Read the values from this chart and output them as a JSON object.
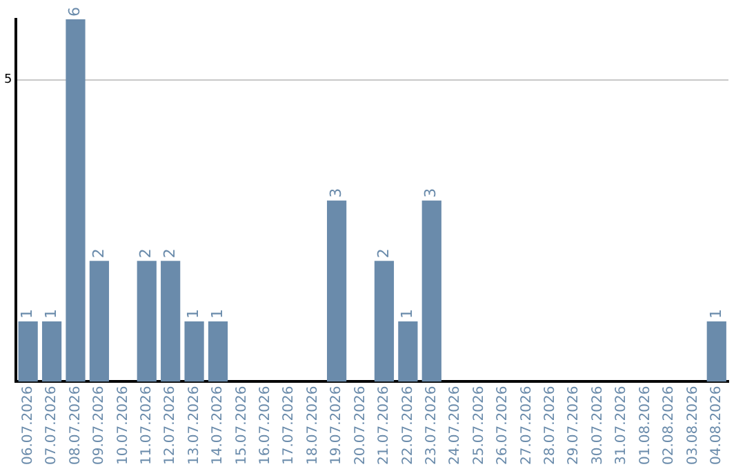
{
  "chart_data": {
    "type": "bar",
    "categories": [
      "06.07.2026",
      "07.07.2026",
      "08.07.2026",
      "09.07.2026",
      "10.07.2026",
      "11.07.2026",
      "12.07.2026",
      "13.07.2026",
      "14.07.2026",
      "15.07.2026",
      "16.07.2026",
      "17.07.2026",
      "18.07.2026",
      "19.07.2026",
      "20.07.2026",
      "21.07.2026",
      "22.07.2026",
      "23.07.2026",
      "24.07.2026",
      "25.07.2026",
      "26.07.2026",
      "27.07.2026",
      "28.07.2026",
      "29.07.2026",
      "30.07.2026",
      "31.07.2026",
      "01.08.2026",
      "02.08.2026",
      "03.08.2026",
      "04.08.2026"
    ],
    "values": [
      1,
      1,
      6,
      2,
      0,
      2,
      2,
      1,
      1,
      0,
      0,
      0,
      0,
      3,
      0,
      2,
      1,
      3,
      0,
      0,
      0,
      0,
      0,
      0,
      0,
      0,
      0,
      0,
      0,
      1
    ],
    "value_labels": [
      "1",
      "1",
      "6",
      "2",
      null,
      "2",
      "2",
      "1",
      "1",
      null,
      null,
      null,
      null,
      "3",
      null,
      "2",
      "1",
      "3",
      null,
      null,
      null,
      null,
      null,
      null,
      null,
      null,
      null,
      null,
      null,
      "1"
    ],
    "color": "#6a8bab",
    "ylim": [
      0,
      6
    ],
    "yticks": [
      5
    ],
    "grid": "y",
    "legend": false
  }
}
